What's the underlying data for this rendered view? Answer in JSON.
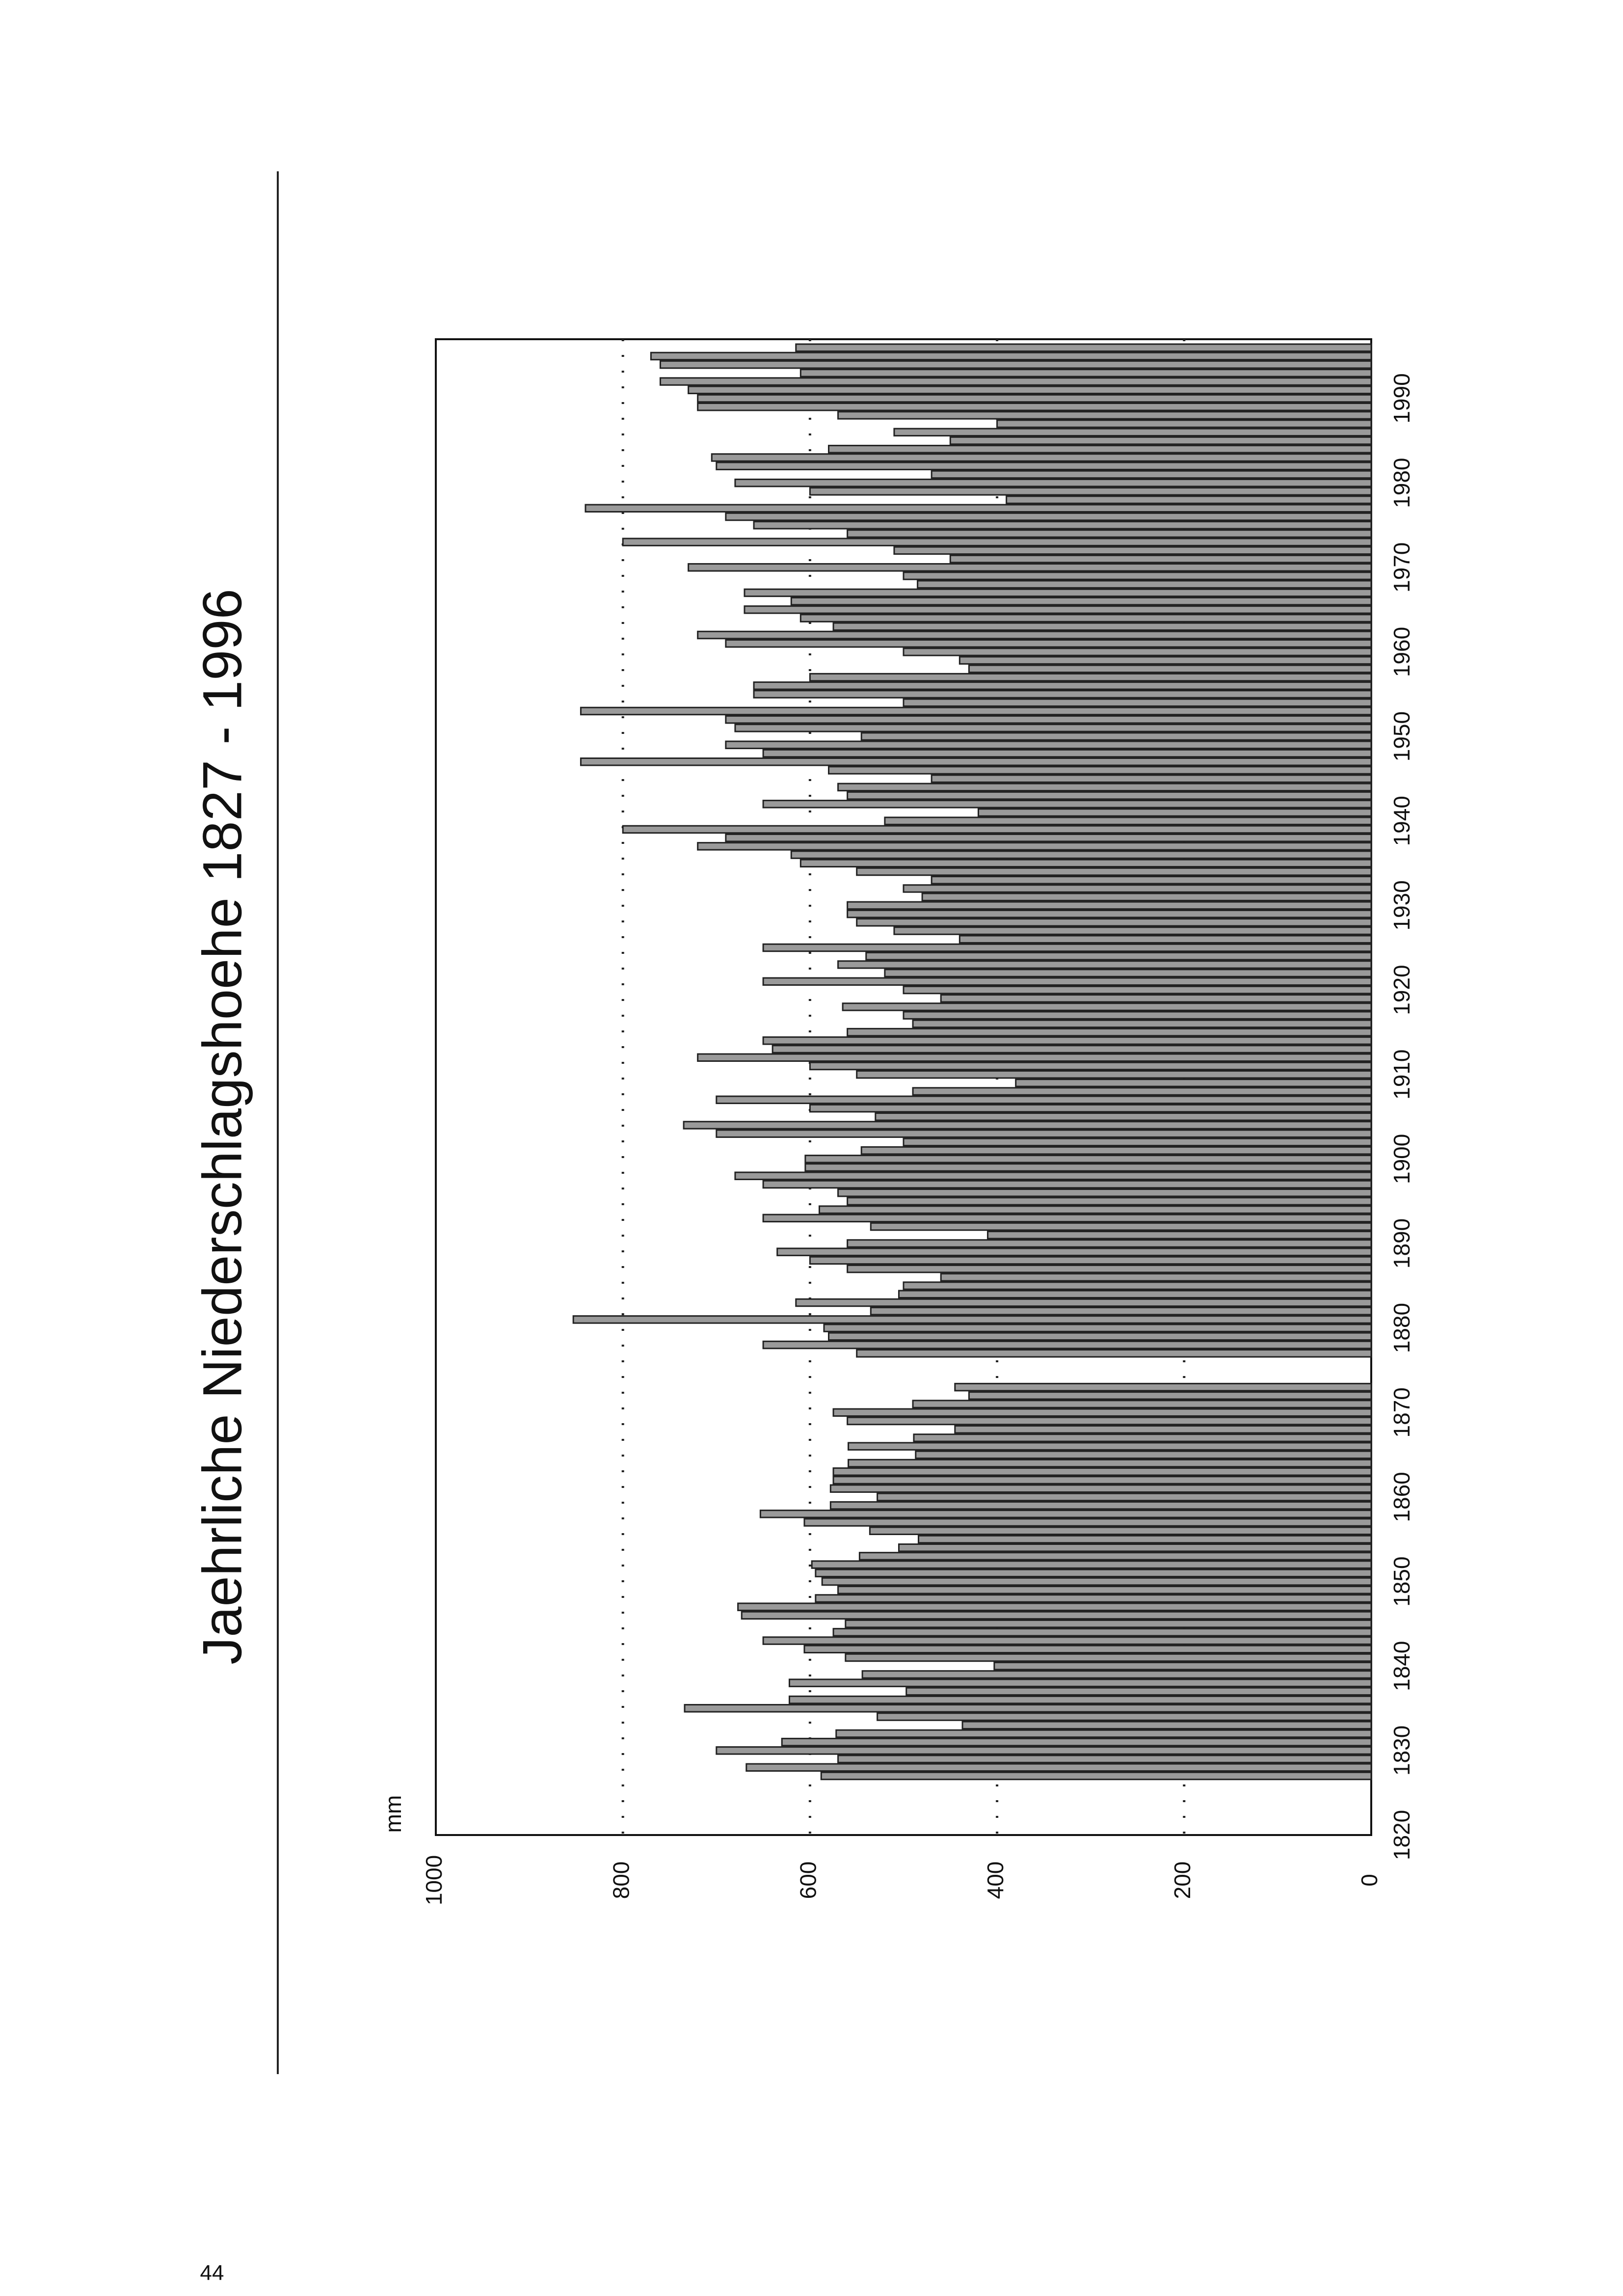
{
  "page_number": "44",
  "chart_data": {
    "type": "bar",
    "title": "Jaehrliche Niederschlagshoehe 1827 - 1996",
    "y_label": "mm",
    "x": [
      1827,
      1828,
      1829,
      1830,
      1831,
      1832,
      1833,
      1834,
      1835,
      1836,
      1837,
      1838,
      1839,
      1840,
      1841,
      1842,
      1843,
      1844,
      1845,
      1846,
      1847,
      1848,
      1849,
      1850,
      1851,
      1852,
      1853,
      1854,
      1855,
      1856,
      1857,
      1858,
      1859,
      1860,
      1861,
      1862,
      1863,
      1864,
      1865,
      1866,
      1867,
      1868,
      1869,
      1870,
      1871,
      1872,
      1873,
      1874,
      1875,
      1876,
      1877,
      1878,
      1879,
      1880,
      1881,
      1882,
      1883,
      1884,
      1885,
      1886,
      1887,
      1888,
      1889,
      1890,
      1891,
      1892,
      1893,
      1894,
      1895,
      1896,
      1897,
      1898,
      1899,
      1900,
      1901,
      1902,
      1903,
      1904,
      1905,
      1906,
      1907,
      1908,
      1909,
      1910,
      1911,
      1912,
      1913,
      1914,
      1915,
      1916,
      1917,
      1918,
      1919,
      1920,
      1921,
      1922,
      1923,
      1924,
      1925,
      1926,
      1927,
      1928,
      1929,
      1930,
      1931,
      1932,
      1933,
      1934,
      1935,
      1936,
      1937,
      1938,
      1939,
      1940,
      1941,
      1942,
      1943,
      1944,
      1945,
      1946,
      1947,
      1948,
      1949,
      1950,
      1951,
      1952,
      1953,
      1954,
      1955,
      1956,
      1957,
      1958,
      1959,
      1960,
      1961,
      1962,
      1963,
      1964,
      1965,
      1966,
      1967,
      1968,
      1969,
      1970,
      1971,
      1972,
      1973,
      1974,
      1975,
      1976,
      1977,
      1978,
      1979,
      1980,
      1981,
      1982,
      1983,
      1984,
      1985,
      1986,
      1987,
      1988,
      1989,
      1990,
      1991,
      1992,
      1993,
      1994,
      1995,
      1996
    ],
    "values": [
      588,
      668,
      570,
      700,
      630,
      572,
      437,
      528,
      734,
      622,
      497,
      622,
      544,
      403,
      562,
      606,
      650,
      575,
      562,
      673,
      677,
      594,
      570,
      587,
      594,
      598,
      547,
      505,
      484,
      536,
      606,
      653,
      578,
      528,
      578,
      575,
      575,
      559,
      487,
      559,
      489,
      445,
      560,
      575,
      490,
      430,
      445,
      null,
      null,
      null,
      550,
      650,
      580,
      585,
      853,
      535,
      615,
      505,
      500,
      460,
      560,
      600,
      635,
      560,
      410,
      535,
      650,
      590,
      560,
      570,
      650,
      680,
      605,
      605,
      545,
      500,
      700,
      735,
      530,
      600,
      700,
      490,
      380,
      550,
      600,
      720,
      640,
      650,
      560,
      490,
      500,
      565,
      460,
      500,
      650,
      520,
      570,
      540,
      650,
      440,
      510,
      550,
      560,
      560,
      480,
      500,
      470,
      550,
      610,
      620,
      720,
      690,
      800,
      520,
      420,
      650,
      560,
      570,
      470,
      580,
      845,
      650,
      690,
      545,
      680,
      690,
      845,
      500,
      660,
      660,
      600,
      430,
      440,
      500,
      690,
      720,
      575,
      610,
      670,
      620,
      670,
      485,
      500,
      730,
      450,
      510,
      800,
      560,
      660,
      690,
      840,
      390,
      600,
      680,
      470,
      700,
      705,
      580,
      450,
      510,
      400,
      570,
      720,
      720,
      730,
      760,
      610,
      760,
      770,
      615
    ],
    "color": "#9a9a9a",
    "ylim": [
      0,
      1000
    ],
    "yticks": [
      0,
      200,
      400,
      600,
      800,
      1000
    ],
    "xlim": [
      1820,
      1997
    ],
    "xticks": [
      1820,
      1830,
      1840,
      1850,
      1860,
      1870,
      1880,
      1890,
      1900,
      1910,
      1920,
      1930,
      1940,
      1950,
      1960,
      1970,
      1980,
      1990
    ],
    "grid": true
  }
}
